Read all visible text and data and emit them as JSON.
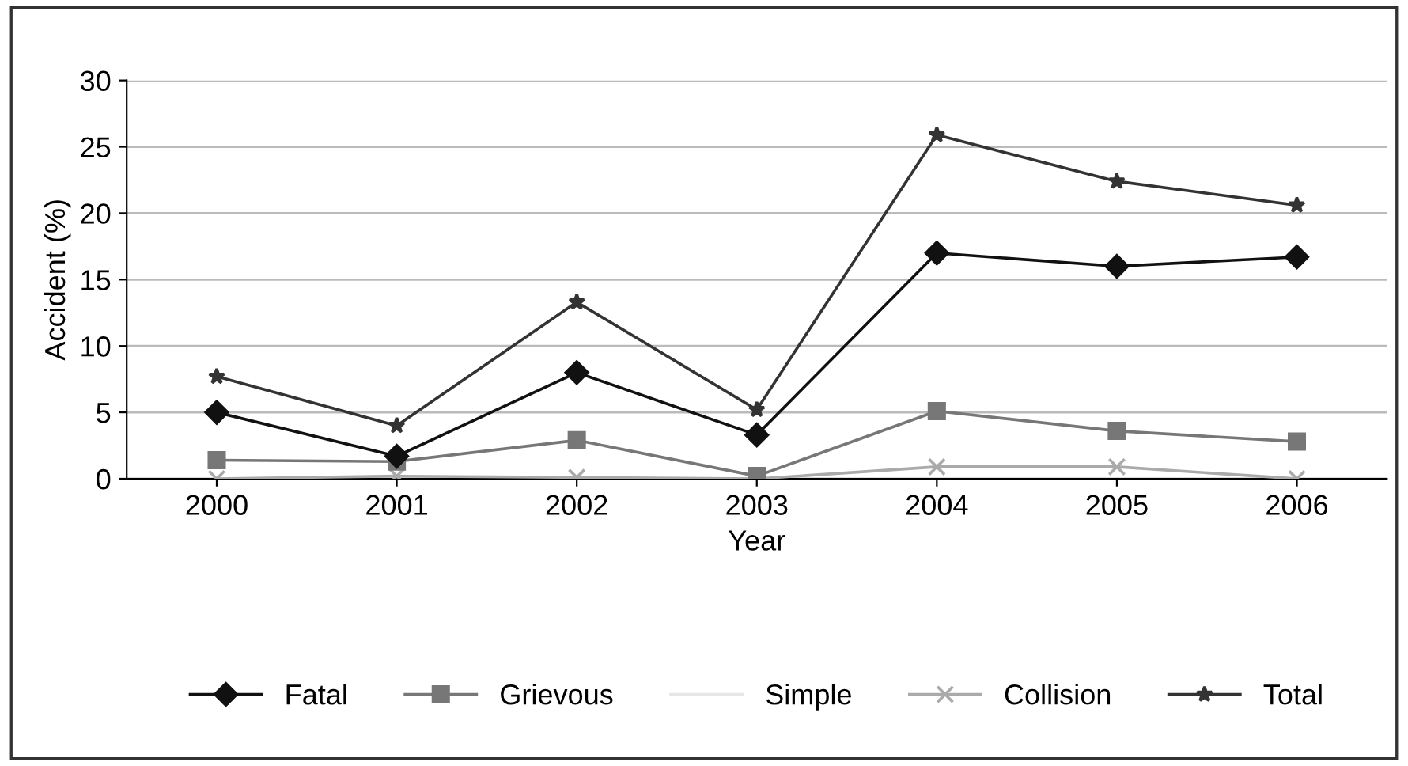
{
  "chart_data": {
    "type": "line",
    "xlabel": "Year",
    "ylabel": "Accident (%)",
    "categories": [
      "2000",
      "2001",
      "2002",
      "2003",
      "2004",
      "2005",
      "2006"
    ],
    "series": [
      {
        "name": "Fatal",
        "color": "#111111",
        "marker": "diamond",
        "values": [
          5.0,
          1.7,
          8.0,
          3.3,
          17.0,
          16.0,
          16.7
        ]
      },
      {
        "name": "Grievous",
        "color": "#777777",
        "marker": "square",
        "values": [
          1.4,
          1.3,
          2.9,
          0.2,
          5.1,
          3.6,
          2.8
        ]
      },
      {
        "name": "Simple",
        "color": "#e6e6e6",
        "marker": "none",
        "values": [
          null,
          null,
          null,
          null,
          null,
          null,
          null
        ]
      },
      {
        "name": "Collision",
        "color": "#aaaaaa",
        "marker": "cross",
        "values": [
          0.0,
          0.2,
          0.1,
          0.0,
          0.9,
          0.9,
          0.0
        ]
      },
      {
        "name": "Total",
        "color": "#333333",
        "marker": "star",
        "values": [
          7.7,
          4.0,
          13.3,
          5.2,
          25.9,
          22.4,
          20.6
        ]
      }
    ],
    "ylim": [
      0,
      30
    ],
    "yticks": [
      0,
      5,
      10,
      15,
      20,
      25,
      30
    ],
    "grid": "y",
    "legend": "bottom"
  }
}
